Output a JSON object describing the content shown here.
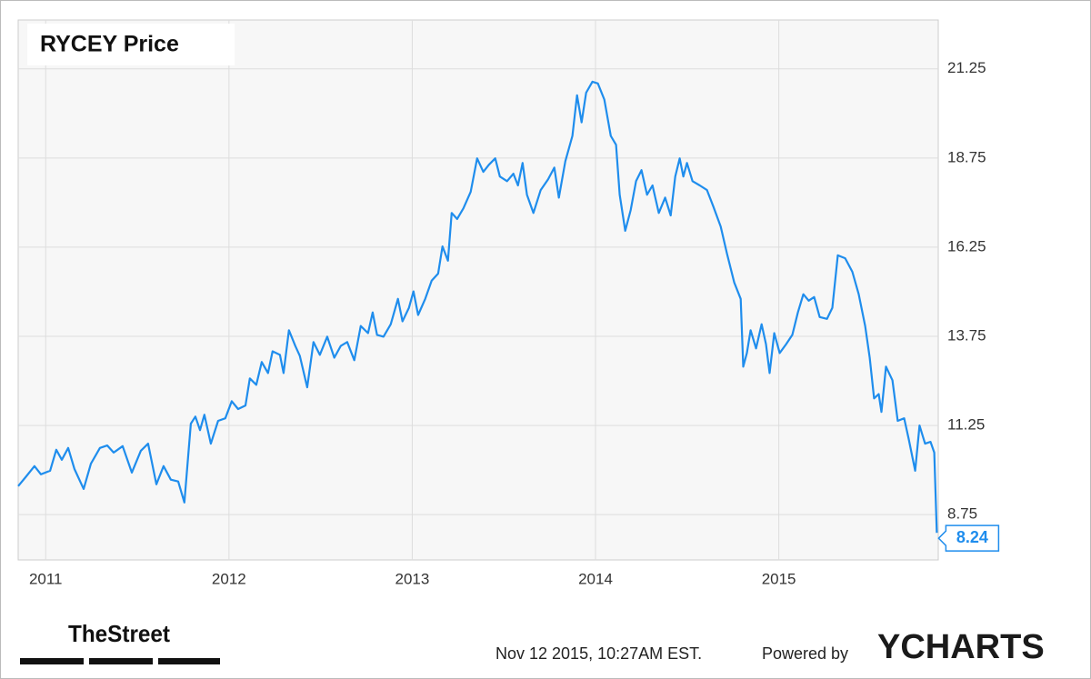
{
  "chart_data": {
    "type": "line",
    "title": "RYCEY Price",
    "x": [
      2010.85,
      2010.89,
      2010.939,
      2010.974,
      2011.024,
      2011.058,
      2011.088,
      2011.123,
      2011.157,
      2011.207,
      2011.247,
      2011.296,
      2011.336,
      2011.371,
      2011.42,
      2011.47,
      2011.519,
      2011.559,
      2011.604,
      2011.643,
      2011.683,
      2011.723,
      2011.757,
      2011.792,
      2011.817,
      2011.842,
      2011.866,
      2011.901,
      2011.941,
      2011.98,
      2012.015,
      2012.05,
      2012.09,
      2012.114,
      2012.149,
      2012.179,
      2012.213,
      2012.238,
      2012.278,
      2012.298,
      2012.327,
      2012.362,
      2012.387,
      2012.427,
      2012.461,
      2012.496,
      2012.536,
      2012.575,
      2012.61,
      2012.645,
      2012.684,
      2012.719,
      2012.759,
      2012.784,
      2012.808,
      2012.843,
      2012.883,
      2012.922,
      2012.947,
      2012.982,
      2013.007,
      2013.032,
      2013.071,
      2013.106,
      2013.141,
      2013.165,
      2013.195,
      2013.215,
      2013.245,
      2013.279,
      2013.319,
      2013.354,
      2013.388,
      2013.418,
      2013.453,
      2013.478,
      2013.517,
      2013.552,
      2013.577,
      2013.602,
      2013.626,
      2013.661,
      2013.701,
      2013.741,
      2013.775,
      2013.8,
      2013.835,
      2013.874,
      2013.899,
      2013.924,
      2013.949,
      2013.983,
      2014.013,
      2014.048,
      2014.083,
      2014.112,
      2014.132,
      2014.162,
      2014.192,
      2014.221,
      2014.251,
      2014.281,
      2014.311,
      2014.345,
      2014.38,
      2014.41,
      2014.435,
      2014.459,
      2014.479,
      2014.499,
      2014.529,
      2014.569,
      2014.608,
      2014.643,
      2014.683,
      2014.717,
      2014.757,
      2014.792,
      2014.806,
      2014.826,
      2014.846,
      2014.876,
      2014.906,
      2014.93,
      2014.95,
      2014.975,
      2015.005,
      2015.04,
      2015.074,
      2015.104,
      2015.134,
      2015.163,
      2015.193,
      2015.223,
      2015.263,
      2015.292,
      2015.322,
      2015.362,
      2015.401,
      2015.436,
      2015.471,
      2015.496,
      2015.52,
      2015.545,
      2015.56,
      2015.585,
      2015.62,
      2015.649,
      2015.684,
      2015.709,
      2015.744,
      2015.768,
      2015.798,
      2015.828,
      2015.848,
      2015.862
    ],
    "series": [
      {
        "name": "RYCEY",
        "color": "#1f8ded",
        "values": [
          9.55,
          9.8,
          10.11,
          9.88,
          9.98,
          10.57,
          10.29,
          10.62,
          10.03,
          9.47,
          10.18,
          10.62,
          10.69,
          10.49,
          10.67,
          9.93,
          10.54,
          10.74,
          9.6,
          10.11,
          9.73,
          9.68,
          9.09,
          11.3,
          11.5,
          11.12,
          11.55,
          10.74,
          11.38,
          11.45,
          11.93,
          11.71,
          11.81,
          12.57,
          12.39,
          13.03,
          12.72,
          13.33,
          13.23,
          12.72,
          13.92,
          13.48,
          13.2,
          12.32,
          13.59,
          13.23,
          13.74,
          13.15,
          13.48,
          13.59,
          13.08,
          14.04,
          13.84,
          14.42,
          13.79,
          13.74,
          14.09,
          14.8,
          14.17,
          14.55,
          15.01,
          14.35,
          14.8,
          15.31,
          15.51,
          16.27,
          15.87,
          17.21,
          17.04,
          17.34,
          17.8,
          18.74,
          18.36,
          18.56,
          18.74,
          18.23,
          18.1,
          18.31,
          17.98,
          18.61,
          17.72,
          17.21,
          17.85,
          18.15,
          18.48,
          17.64,
          18.66,
          19.37,
          20.51,
          19.75,
          20.58,
          20.89,
          20.84,
          20.39,
          19.37,
          19.12,
          17.72,
          16.71,
          17.29,
          18.1,
          18.41,
          17.72,
          17.98,
          17.21,
          17.64,
          17.14,
          18.23,
          18.74,
          18.23,
          18.61,
          18.1,
          17.98,
          17.85,
          17.39,
          16.83,
          16.07,
          15.26,
          14.8,
          12.9,
          13.28,
          13.92,
          13.41,
          14.09,
          13.53,
          12.72,
          13.84,
          13.28,
          13.53,
          13.79,
          14.42,
          14.93,
          14.75,
          14.85,
          14.29,
          14.24,
          14.55,
          16.02,
          15.94,
          15.56,
          14.93,
          14.04,
          13.15,
          12.01,
          12.13,
          11.63,
          12.9,
          12.52,
          11.38,
          11.45,
          10.87,
          9.98,
          11.25,
          10.74,
          10.79,
          10.49,
          8.24
        ]
      }
    ],
    "xlim": [
      2010.85,
      2015.87
    ],
    "xticks": [
      2011,
      2012,
      2013,
      2014,
      2015
    ],
    "ylim": [
      7.48,
      22.62
    ],
    "yticks": [
      8.75,
      11.25,
      13.75,
      16.25,
      18.75,
      21.25
    ],
    "grid": true
  },
  "footer": {
    "brand": "TheStreet",
    "timestamp": "Nov 12 2015, 10:27AM EST.",
    "powered": "Powered by",
    "logo": "YCHARTS"
  }
}
